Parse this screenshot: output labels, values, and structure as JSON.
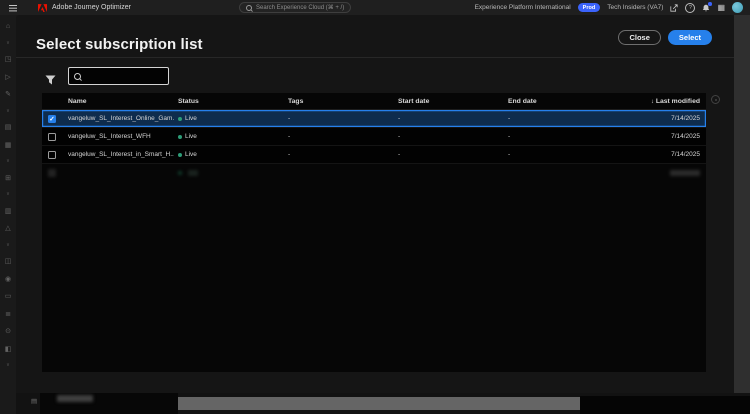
{
  "topbar": {
    "app_title": "Adobe Journey Optimizer",
    "search_placeholder": "Search Experience Cloud (⌘ + /)",
    "org_label": "Experience Platform International",
    "env_badge": "Prod",
    "sandbox_label": "Tech Insiders (VA7)"
  },
  "modal": {
    "title": "Select subscription list",
    "close_label": "Close",
    "select_label": "Select",
    "search_value": ""
  },
  "table": {
    "sort_indicator": "↓",
    "headers": {
      "name": "Name",
      "status": "Status",
      "tags": "Tags",
      "start": "Start date",
      "end": "End date",
      "modified": "Last modified"
    },
    "rows": [
      {
        "name": "vangeluw_SL_Interest_Online_Gam...",
        "status": "Live",
        "tags": "-",
        "start": "-",
        "end": "-",
        "modified": "7/14/2025",
        "selected": true
      },
      {
        "name": "vangeluw_SL_Interest_WFH",
        "status": "Live",
        "tags": "-",
        "start": "-",
        "end": "-",
        "modified": "7/14/2025",
        "selected": false
      },
      {
        "name": "vangeluw_SL_Interest_in_Smart_H...",
        "status": "Live",
        "tags": "-",
        "start": "-",
        "end": "-",
        "modified": "7/14/2025",
        "selected": false
      }
    ]
  },
  "icons": {
    "check": "✓",
    "help": "?",
    "apps": "▦",
    "doc": "▤"
  },
  "sidebar": {
    "items": [
      {
        "name": "nav-home",
        "glyph": "⌂"
      },
      {
        "name": "nav-chevron-1",
        "glyph": "∨",
        "type": "chevron"
      },
      {
        "name": "nav-campaigns",
        "glyph": "◳"
      },
      {
        "name": "nav-journeys",
        "glyph": "▷"
      },
      {
        "name": "nav-content",
        "glyph": "✎"
      },
      {
        "name": "nav-chevron-2",
        "glyph": "∨",
        "type": "chevron"
      },
      {
        "name": "nav-audiences",
        "glyph": "▤"
      },
      {
        "name": "nav-reports",
        "glyph": "▦"
      },
      {
        "name": "nav-chevron-3",
        "glyph": "∨",
        "type": "chevron"
      },
      {
        "name": "nav-datasets",
        "glyph": "⊞"
      },
      {
        "name": "nav-chevron-4",
        "glyph": "∨",
        "type": "chevron"
      },
      {
        "name": "nav-schemas",
        "glyph": "▥"
      },
      {
        "name": "nav-alerts",
        "glyph": "△"
      },
      {
        "name": "nav-chevron-5",
        "glyph": "∨",
        "type": "chevron"
      },
      {
        "name": "nav-sources",
        "glyph": "◫"
      },
      {
        "name": "nav-profiles",
        "glyph": "◉"
      },
      {
        "name": "nav-queries",
        "glyph": "▭"
      },
      {
        "name": "nav-monitoring",
        "glyph": "≣"
      },
      {
        "name": "nav-configurations",
        "glyph": "⊙"
      },
      {
        "name": "nav-admin",
        "glyph": "◧"
      },
      {
        "name": "nav-chevron-6",
        "glyph": "∨",
        "type": "chevron"
      }
    ]
  },
  "colors": {
    "accent": "#2680eb",
    "status-live": "#2d9d78",
    "badge": "#3b63fb",
    "logo": "#eb1000",
    "avatar": "#3d9db5"
  }
}
